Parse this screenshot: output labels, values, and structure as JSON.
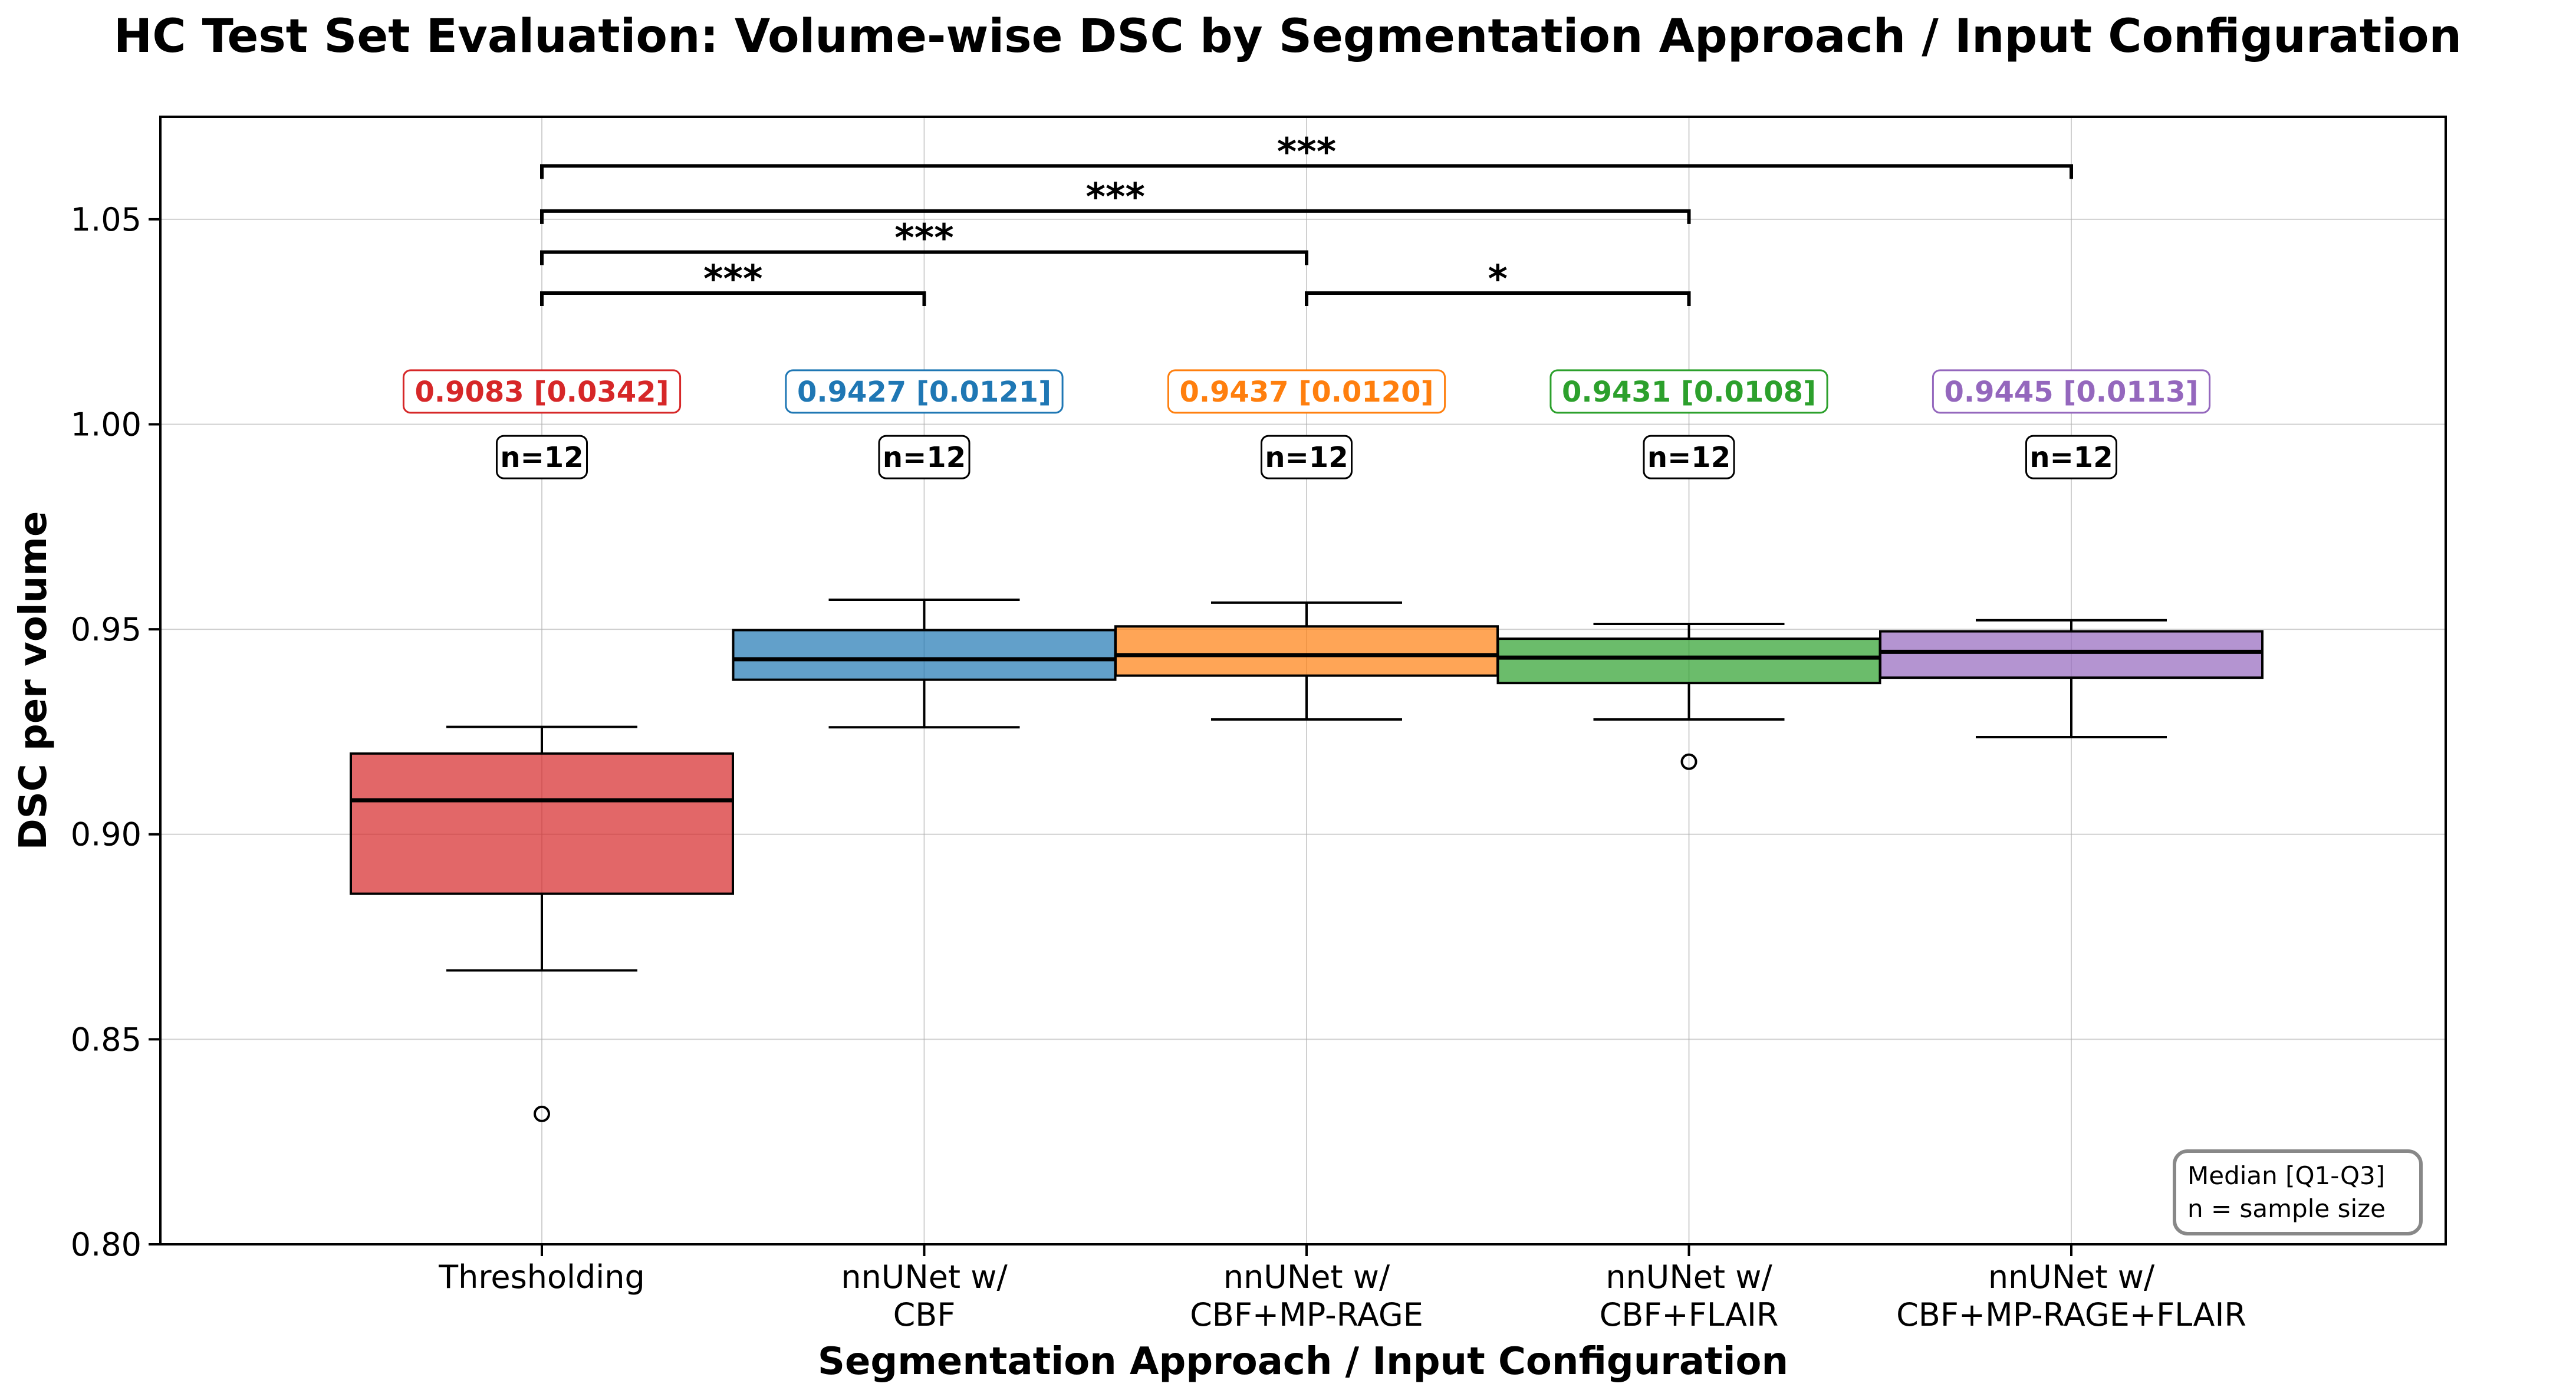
{
  "chart_data": {
    "type": "box",
    "title": "HC Test Set Evaluation: Volume-wise DSC by Segmentation Approach / Input Configuration",
    "xlabel": "Segmentation Approach / Input Configuration",
    "ylabel": "DSC per volume",
    "ylim": [
      0.8,
      1.075
    ],
    "yticks": [
      "0.80",
      "0.85",
      "0.90",
      "0.95",
      "1.00",
      "1.05"
    ],
    "grid": true,
    "categories": [
      {
        "label_lines": [
          "Thresholding"
        ],
        "color": "#d62728",
        "q1": 0.8855,
        "median": 0.9083,
        "q3": 0.9197,
        "whisker_low": 0.8668,
        "whisker_high": 0.9262,
        "outliers": [
          0.8318
        ],
        "stat_label": "0.9083 [0.0342]",
        "n_label": "n=12"
      },
      {
        "label_lines": [
          "nnUNet w/",
          "CBF"
        ],
        "color": "#1f77b4",
        "q1": 0.9377,
        "median": 0.9427,
        "q3": 0.9498,
        "whisker_low": 0.9261,
        "whisker_high": 0.9572,
        "outliers": [],
        "stat_label": "0.9427 [0.0121]",
        "n_label": "n=12"
      },
      {
        "label_lines": [
          "nnUNet w/",
          "CBF+MP-RAGE"
        ],
        "color": "#ff7f0e",
        "q1": 0.9387,
        "median": 0.9437,
        "q3": 0.9507,
        "whisker_low": 0.928,
        "whisker_high": 0.9565,
        "outliers": [],
        "stat_label": "0.9437 [0.0120]",
        "n_label": "n=12"
      },
      {
        "label_lines": [
          "nnUNet w/",
          "CBF+FLAIR"
        ],
        "color": "#2ca02c",
        "q1": 0.9369,
        "median": 0.9431,
        "q3": 0.9477,
        "whisker_low": 0.928,
        "whisker_high": 0.9513,
        "outliers": [
          0.9177
        ],
        "stat_label": "0.9431 [0.0108]",
        "n_label": "n=12"
      },
      {
        "label_lines": [
          "nnUNet w/",
          "CBF+MP-RAGE+FLAIR"
        ],
        "color": "#9467bd",
        "q1": 0.9382,
        "median": 0.9445,
        "q3": 0.9495,
        "whisker_low": 0.9237,
        "whisker_high": 0.9522,
        "outliers": [],
        "stat_label": "0.9445 [0.0113]",
        "n_label": "n=12"
      }
    ],
    "significance": [
      {
        "from": 0,
        "to": 1,
        "y": 1.032,
        "label": "***"
      },
      {
        "from": 2,
        "to": 3,
        "y": 1.032,
        "label": "*"
      },
      {
        "from": 0,
        "to": 2,
        "y": 1.042,
        "label": "***"
      },
      {
        "from": 0,
        "to": 3,
        "y": 1.052,
        "label": "***"
      },
      {
        "from": 0,
        "to": 4,
        "y": 1.063,
        "label": "***"
      }
    ],
    "stat_label_y": 1.008,
    "n_label_y": 0.992,
    "legend_note_lines": [
      "Median [Q1-Q3]",
      "n = sample size"
    ],
    "legend_placement": "bottom-right"
  }
}
